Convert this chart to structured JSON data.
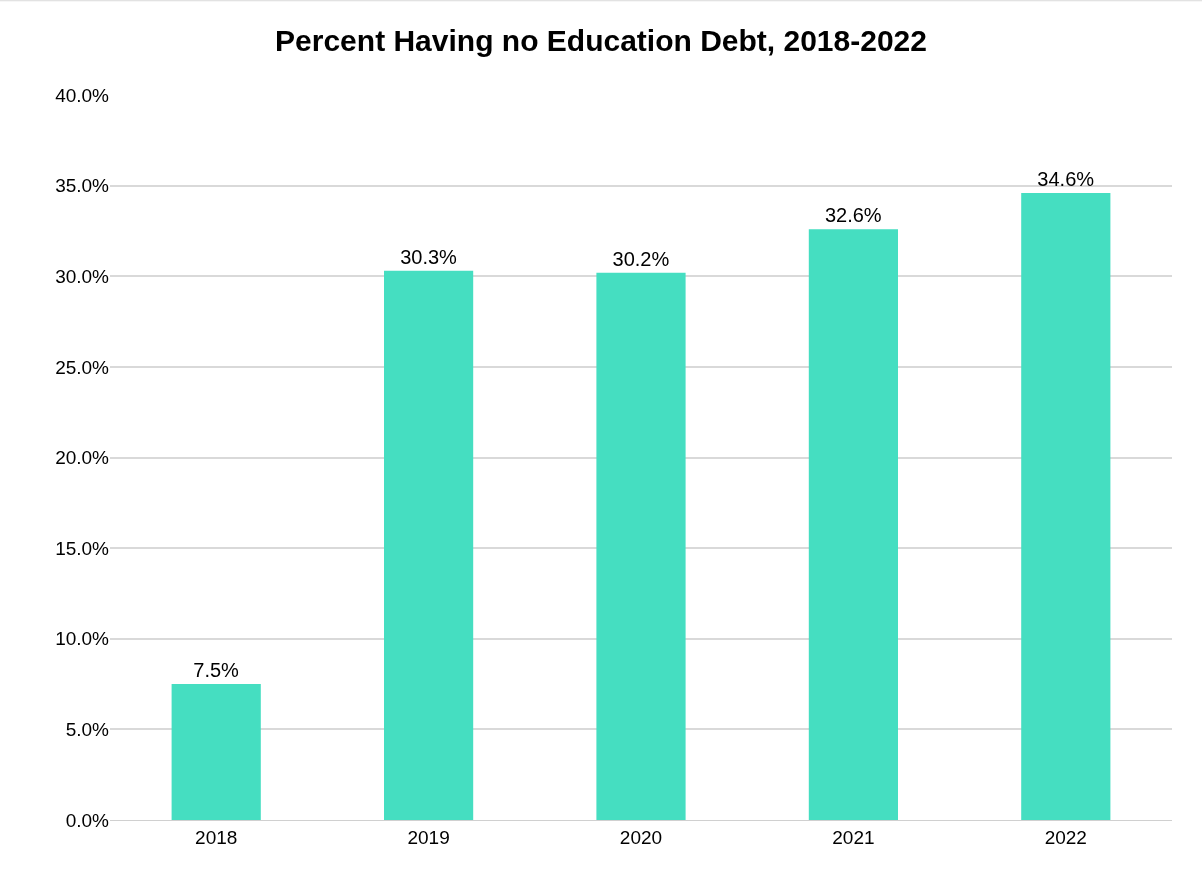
{
  "chart_data": {
    "type": "bar",
    "title": "Percent Having no Education Debt, 2018-2022",
    "categories": [
      "2018",
      "2019",
      "2020",
      "2021",
      "2022"
    ],
    "values": [
      7.5,
      30.3,
      30.2,
      32.6,
      34.6
    ],
    "value_labels": [
      "7.5%",
      "30.3%",
      "30.2%",
      "32.6%",
      "34.6%"
    ],
    "color": "#45dec1",
    "ylim": [
      0,
      40
    ],
    "yticks": [
      {
        "value": 0,
        "label": "0.0%"
      },
      {
        "value": 5,
        "label": "5.0%"
      },
      {
        "value": 10,
        "label": "10.0%"
      },
      {
        "value": 15,
        "label": "15.0%"
      },
      {
        "value": 20,
        "label": "20.0%"
      },
      {
        "value": 25,
        "label": "25.0%"
      },
      {
        "value": 30,
        "label": "30.0%"
      },
      {
        "value": 35,
        "label": "35.0%"
      },
      {
        "value": 40,
        "label": "40.0%"
      }
    ],
    "grid": "y",
    "legend": false
  }
}
